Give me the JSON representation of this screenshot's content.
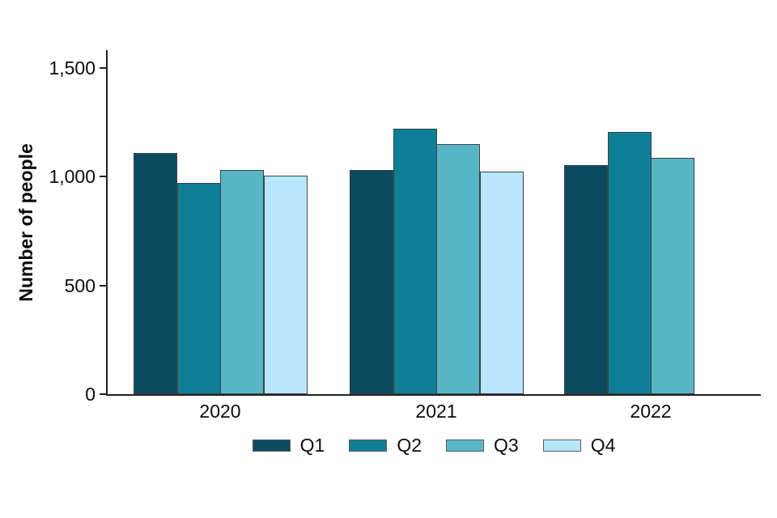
{
  "chart_data": {
    "type": "bar",
    "title": "",
    "xlabel": "",
    "ylabel": "Number of people",
    "categories": [
      "2020",
      "2021",
      "2022"
    ],
    "series": [
      {
        "name": "Q1",
        "color": "#0b4a5e",
        "values": [
          1110,
          1030,
          1055
        ]
      },
      {
        "name": "Q2",
        "color": "#0e7f96",
        "values": [
          970,
          1220,
          1205
        ]
      },
      {
        "name": "Q3",
        "color": "#58b5c8",
        "values": [
          1030,
          1150,
          1085
        ]
      },
      {
        "name": "Q4",
        "color": "#b8e6fa",
        "values": [
          1005,
          1025,
          null
        ]
      }
    ],
    "ylim": [
      0,
      1500
    ],
    "yticks": [
      {
        "value": 0,
        "label": "0"
      },
      {
        "value": 500,
        "label": "500"
      },
      {
        "value": 1000,
        "label": "1,000"
      },
      {
        "value": 1500,
        "label": "1,500"
      }
    ],
    "grid": false,
    "legend_position": "bottom"
  },
  "style": {
    "axis_color": "#222222",
    "bar_border_color": "#3b4347",
    "text_color": "#0b0c0c",
    "background": "#ffffff"
  }
}
